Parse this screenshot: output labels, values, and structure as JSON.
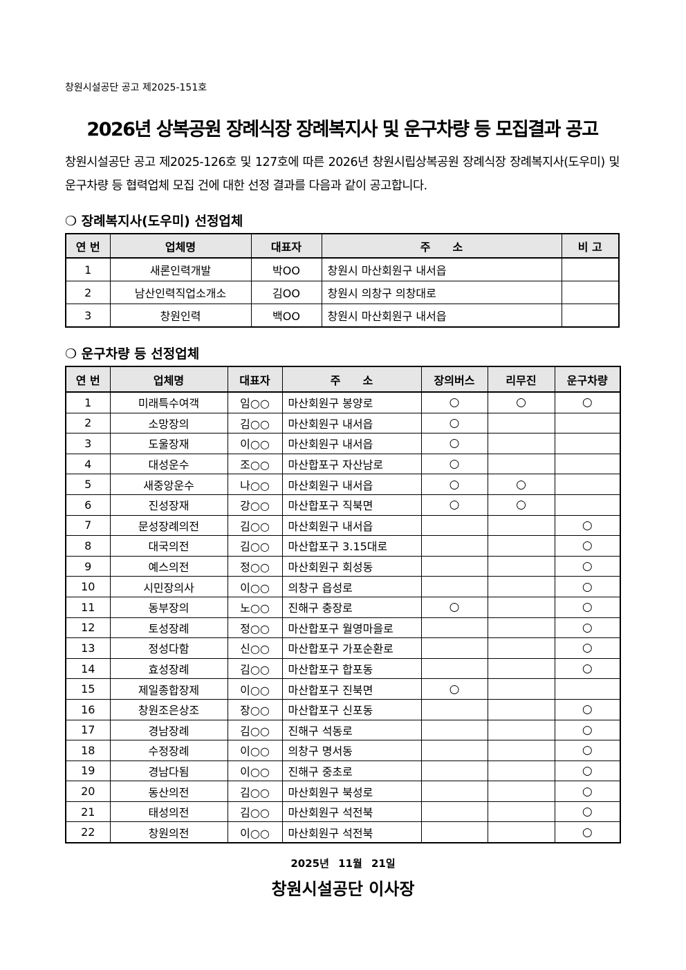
{
  "ref": "창원시설공단 공고 제2025-151호",
  "title": "2026년 상복공원 장례식장 장례복지사 및 운구차량 등 모집결과 공고",
  "intro": "창원시설공단 공고 제2025-126호 및 127호에 따른 2026년 창원시립상복공원 장례식장 장례복지사(도우미) 및 운구차량 등 협력업체 모집 건에 대한 선정 결과를 다음과 같이 공고합니다.",
  "section1": {
    "heading": "❍ 장례복지사(도우미) 선정업체",
    "headers": [
      "연 번",
      "업체명",
      "대표자",
      "주　　소",
      "비 고"
    ],
    "rows": [
      [
        "1",
        "새론인력개발",
        "박OO",
        "창원시 마산회원구 내서읍",
        ""
      ],
      [
        "2",
        "남산인력직업소개소",
        "김OO",
        "창원시 의창구 의창대로",
        ""
      ],
      [
        "3",
        "창원인력",
        "백OO",
        "창원시 마산회원구 내서읍",
        ""
      ]
    ]
  },
  "section2": {
    "heading": "❍ 운구차량 등 선정업체",
    "headers": [
      "연 번",
      "업체명",
      "대표자",
      "주　　소",
      "장의버스",
      "리무진",
      "운구차량"
    ],
    "rows": [
      [
        "1",
        "미래특수여객",
        "임○○",
        "마산회원구 봉양로",
        "○",
        "○",
        "○"
      ],
      [
        "2",
        "소망장의",
        "김○○",
        "마산회원구 내서읍",
        "○",
        "",
        ""
      ],
      [
        "3",
        "도울장재",
        "이○○",
        "마산회원구 내서읍",
        "○",
        "",
        ""
      ],
      [
        "4",
        "대성운수",
        "조○○",
        "마산합포구 자산남로",
        "○",
        "",
        ""
      ],
      [
        "5",
        "새중앙운수",
        "나○○",
        "마산회원구 내서읍",
        "○",
        "○",
        ""
      ],
      [
        "6",
        "진성장재",
        "강○○",
        "마산합포구 직북면",
        "○",
        "○",
        ""
      ],
      [
        "7",
        "문성장례의전",
        "김○○",
        "마산회원구 내서읍",
        "",
        "",
        "○"
      ],
      [
        "8",
        "대국의전",
        "김○○",
        "마산합포구 3.15대로",
        "",
        "",
        "○"
      ],
      [
        "9",
        "예스의전",
        "정○○",
        "마산회원구 회성동",
        "",
        "",
        "○"
      ],
      [
        "10",
        "시민장의사",
        "이○○",
        "의창구 읍성로",
        "",
        "",
        "○"
      ],
      [
        "11",
        "동부장의",
        "노○○",
        "진해구 충장로",
        "○",
        "",
        "○"
      ],
      [
        "12",
        "토성장례",
        "정○○",
        "마산합포구 월영마을로",
        "",
        "",
        "○"
      ],
      [
        "13",
        "정성다함",
        "신○○",
        "마산합포구 가포순환로",
        "",
        "",
        "○"
      ],
      [
        "14",
        "효성장례",
        "김○○",
        "마산합포구 합포동",
        "",
        "",
        "○"
      ],
      [
        "15",
        "제일종합장제",
        "이○○",
        "마산합포구 진북면",
        "○",
        "",
        ""
      ],
      [
        "16",
        "창원조은상조",
        "장○○",
        "마산합포구 신포동",
        "",
        "",
        "○"
      ],
      [
        "17",
        "경남장례",
        "김○○",
        "진해구 석동로",
        "",
        "",
        "○"
      ],
      [
        "18",
        "수정장례",
        "이○○",
        "의창구 명서동",
        "",
        "",
        "○"
      ],
      [
        "19",
        "경남다됨",
        "이○○",
        "진해구 중초로",
        "",
        "",
        "○"
      ],
      [
        "20",
        "동산의전",
        "김○○",
        "마산회원구 북성로",
        "",
        "",
        "○"
      ],
      [
        "21",
        "태성의전",
        "김○○",
        "마산회원구 석전북",
        "",
        "",
        "○"
      ],
      [
        "22",
        "창원의전",
        "이○○",
        "마산회원구 석전북",
        "",
        "",
        "○"
      ]
    ]
  },
  "date": "2025년 11월 21일",
  "signature": "창원시설공단 이사장"
}
